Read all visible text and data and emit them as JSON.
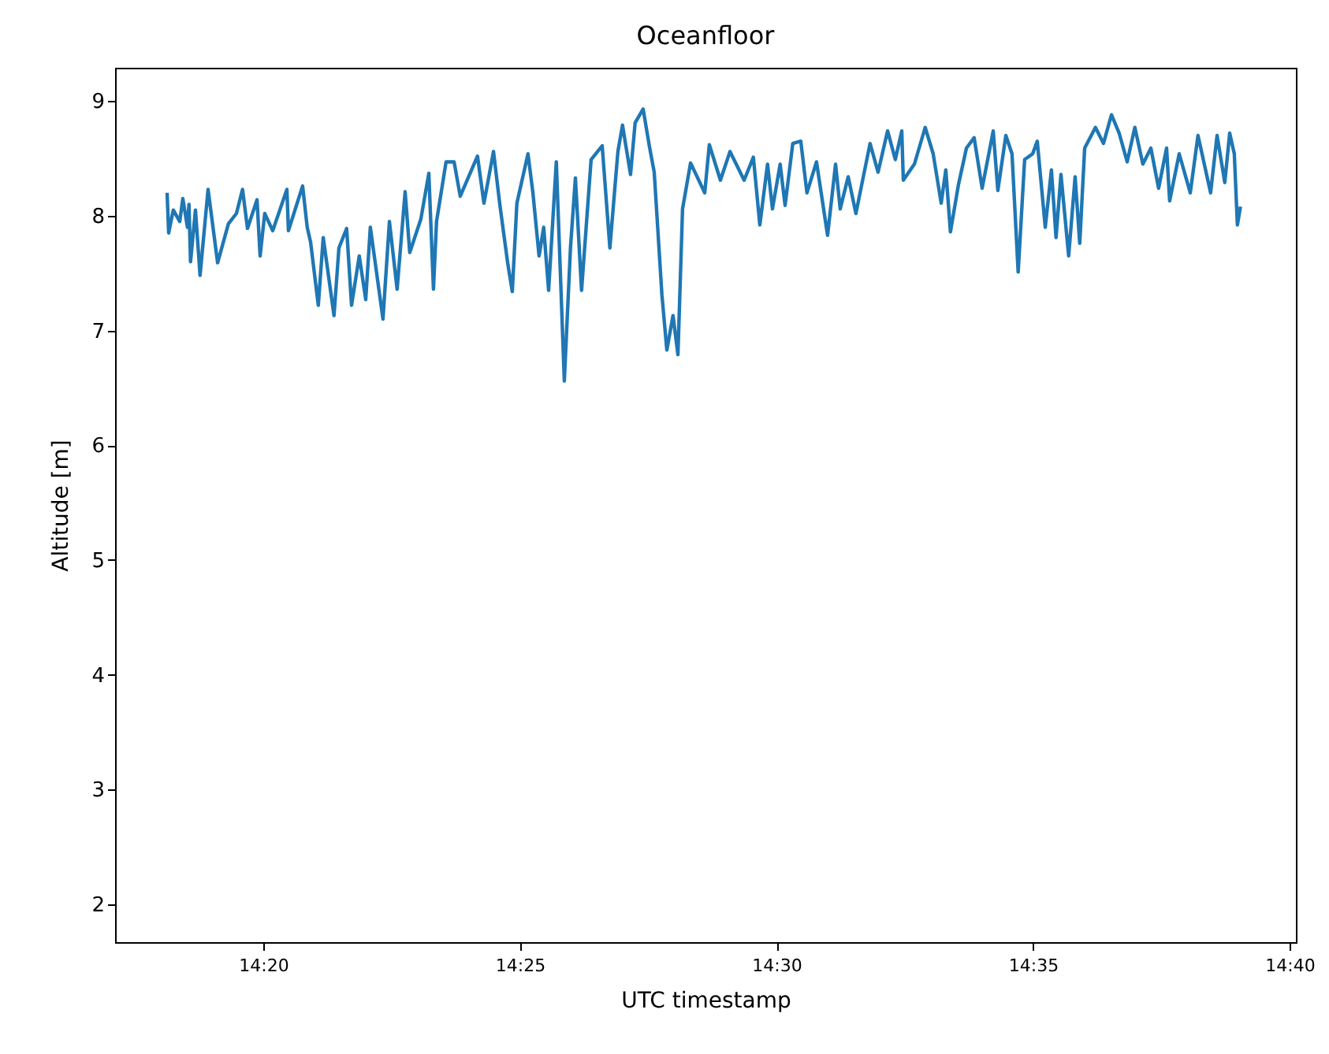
{
  "chart_data": {
    "type": "line",
    "title": "Oceanfloor",
    "xlabel": "UTC timestamp",
    "ylabel": "Altitude [m]",
    "xlim": [
      14.2852,
      14.6687
    ],
    "ylim": [
      1.67,
      9.29
    ],
    "xticks": [
      {
        "value": 14.333333,
        "label": "14:20"
      },
      {
        "value": 14.416667,
        "label": "14:25"
      },
      {
        "value": 14.5,
        "label": "14:30"
      },
      {
        "value": 14.583333,
        "label": "14:35"
      },
      {
        "value": 14.666667,
        "label": "14:40"
      }
    ],
    "yticks": [
      2,
      3,
      4,
      5,
      6,
      7,
      8,
      9
    ],
    "grid": false,
    "marker": "none",
    "line_style": "solid",
    "series": [
      {
        "color": "#1f77b4",
        "x": [
          14.3021,
          14.3026,
          14.3041,
          14.3062,
          14.3072,
          14.3087,
          14.3092,
          14.3097,
          14.3113,
          14.3128,
          14.3154,
          14.3185,
          14.322,
          14.3246,
          14.3266,
          14.3282,
          14.3313,
          14.3323,
          14.3338,
          14.3364,
          14.341,
          14.3415,
          14.3461,
          14.3476,
          14.3487,
          14.3512,
          14.3528,
          14.3563,
          14.3579,
          14.3604,
          14.362,
          14.3645,
          14.3666,
          14.3681,
          14.3722,
          14.3743,
          14.3768,
          14.3794,
          14.3809,
          14.3845,
          14.3871,
          14.3886,
          14.3896,
          14.3927,
          14.3953,
          14.3973,
          14.4029,
          14.405,
          14.4081,
          14.4101,
          14.4127,
          14.4142,
          14.4157,
          14.4193,
          14.4209,
          14.4229,
          14.4244,
          14.426,
          14.4285,
          14.4311,
          14.4331,
          14.4347,
          14.4367,
          14.4398,
          14.4434,
          14.4459,
          14.4485,
          14.45,
          14.4526,
          14.4541,
          14.4567,
          14.4587,
          14.4603,
          14.4628,
          14.4644,
          14.4664,
          14.468,
          14.4695,
          14.4721,
          14.4767,
          14.4782,
          14.4818,
          14.4849,
          14.4895,
          14.4925,
          14.4946,
          14.4971,
          14.4987,
          14.5012,
          14.5028,
          14.5053,
          14.5079,
          14.5099,
          14.513,
          14.5166,
          14.5192,
          14.5207,
          14.5233,
          14.5258,
          14.5304,
          14.533,
          14.5361,
          14.5386,
          14.5407,
          14.5412,
          14.5448,
          14.5483,
          14.5509,
          14.5535,
          14.555,
          14.5565,
          14.5591,
          14.5617,
          14.5642,
          14.5668,
          14.5704,
          14.5719,
          14.5745,
          14.5765,
          14.5785,
          14.5806,
          14.5832,
          14.5847,
          14.5873,
          14.5893,
          14.5908,
          14.5924,
          14.5949,
          14.597,
          14.5985,
          14.6001,
          14.6036,
          14.6062,
          14.6088,
          14.6113,
          14.6139,
          14.6164,
          14.619,
          14.6216,
          14.6241,
          14.6267,
          14.6277,
          14.6308,
          14.6344,
          14.6369,
          14.641,
          14.6431,
          14.6456,
          14.6472,
          14.6487,
          14.6497,
          14.6507
        ],
        "values": [
          8.2,
          7.85,
          8.05,
          7.95,
          8.15,
          7.9,
          8.1,
          7.6,
          8.05,
          7.48,
          8.23,
          7.59,
          7.93,
          8.02,
          8.23,
          7.89,
          8.14,
          7.65,
          8.02,
          7.87,
          8.23,
          7.87,
          8.26,
          7.9,
          7.77,
          7.22,
          7.81,
          7.13,
          7.72,
          7.89,
          7.22,
          7.65,
          7.27,
          7.9,
          7.1,
          7.95,
          7.36,
          8.21,
          7.68,
          7.97,
          8.37,
          7.36,
          7.95,
          8.47,
          8.47,
          8.17,
          8.52,
          8.11,
          8.56,
          8.11,
          7.59,
          7.34,
          8.11,
          8.54,
          8.2,
          7.65,
          7.9,
          7.35,
          8.47,
          6.56,
          7.72,
          8.33,
          7.35,
          8.49,
          8.61,
          7.72,
          8.56,
          8.79,
          8.36,
          8.81,
          8.93,
          8.61,
          8.38,
          7.31,
          6.83,
          7.13,
          6.79,
          8.06,
          8.46,
          8.2,
          8.62,
          8.31,
          8.56,
          8.31,
          8.51,
          7.92,
          8.45,
          8.06,
          8.45,
          8.09,
          8.63,
          8.65,
          8.2,
          8.47,
          7.83,
          8.45,
          8.06,
          8.34,
          8.02,
          8.63,
          8.38,
          8.74,
          8.49,
          8.74,
          8.31,
          8.45,
          8.77,
          8.54,
          8.11,
          8.4,
          7.86,
          8.27,
          8.59,
          8.68,
          8.24,
          8.74,
          8.22,
          8.7,
          8.54,
          7.51,
          8.49,
          8.54,
          8.65,
          7.9,
          8.4,
          7.81,
          8.36,
          7.65,
          8.34,
          7.76,
          8.59,
          8.77,
          8.63,
          8.88,
          8.72,
          8.47,
          8.77,
          8.45,
          8.59,
          8.24,
          8.59,
          8.13,
          8.54,
          8.2,
          8.7,
          8.2,
          8.7,
          8.29,
          8.72,
          8.54,
          7.92,
          8.08
        ]
      }
    ]
  }
}
